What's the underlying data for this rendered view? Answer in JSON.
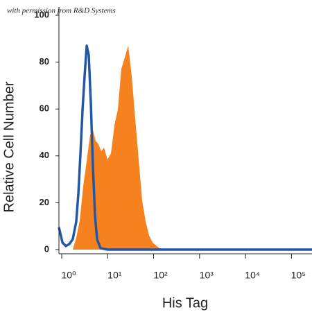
{
  "chart_data": {
    "type": "area",
    "annotation": "with permission from R&D Systems",
    "x_label": "His Tag",
    "y_label": "Relative Cell Number",
    "xscale": "log",
    "xlim": [
      0.87,
      280000
    ],
    "ylim": [
      0,
      100
    ],
    "xticks": [
      {
        "value": 1,
        "label": "10⁰"
      },
      {
        "value": 10,
        "label": "10¹"
      },
      {
        "value": 100,
        "label": "10²"
      },
      {
        "value": 1000,
        "label": "10³"
      },
      {
        "value": 10000,
        "label": "10⁴"
      },
      {
        "value": 100000,
        "label": "10⁵"
      }
    ],
    "yticks": [
      0,
      20,
      40,
      60,
      80,
      100
    ],
    "series": [
      {
        "color": "#f5821f",
        "filled": true,
        "x": [
          1.74,
          2.07,
          2.47,
          2.94,
          3.5,
          4.16,
          4.78,
          5.49,
          6.3,
          7.24,
          8.32,
          9.9,
          11.8,
          14.0,
          16.7,
          19.8,
          23.6,
          28.1,
          33.4,
          39.8,
          47.3,
          56.3,
          67,
          79.8,
          95,
          134,
          190
        ],
        "values": [
          0,
          5,
          12.4,
          27,
          38,
          49,
          51,
          46.4,
          45,
          42,
          43.5,
          38.5,
          41,
          53,
          59.8,
          77,
          82,
          87,
          74,
          56,
          38.5,
          21,
          12,
          6,
          3,
          0.6,
          0
        ]
      },
      {
        "color": "#2257a6",
        "filled": false,
        "x": [
          0.87,
          1.04,
          1.23,
          1.47,
          1.74,
          2.07,
          2.3,
          2.56,
          2.84,
          3.15,
          3.5,
          3.88,
          4.3,
          4.78,
          5.3,
          5.88,
          7.0,
          9.9,
          280000
        ],
        "values": [
          9.5,
          3,
          1.5,
          2.4,
          4.4,
          11.8,
          23.7,
          41.4,
          59.8,
          74,
          87,
          83,
          62.7,
          35.5,
          14.8,
          4.4,
          0.6,
          0,
          0
        ]
      }
    ]
  }
}
